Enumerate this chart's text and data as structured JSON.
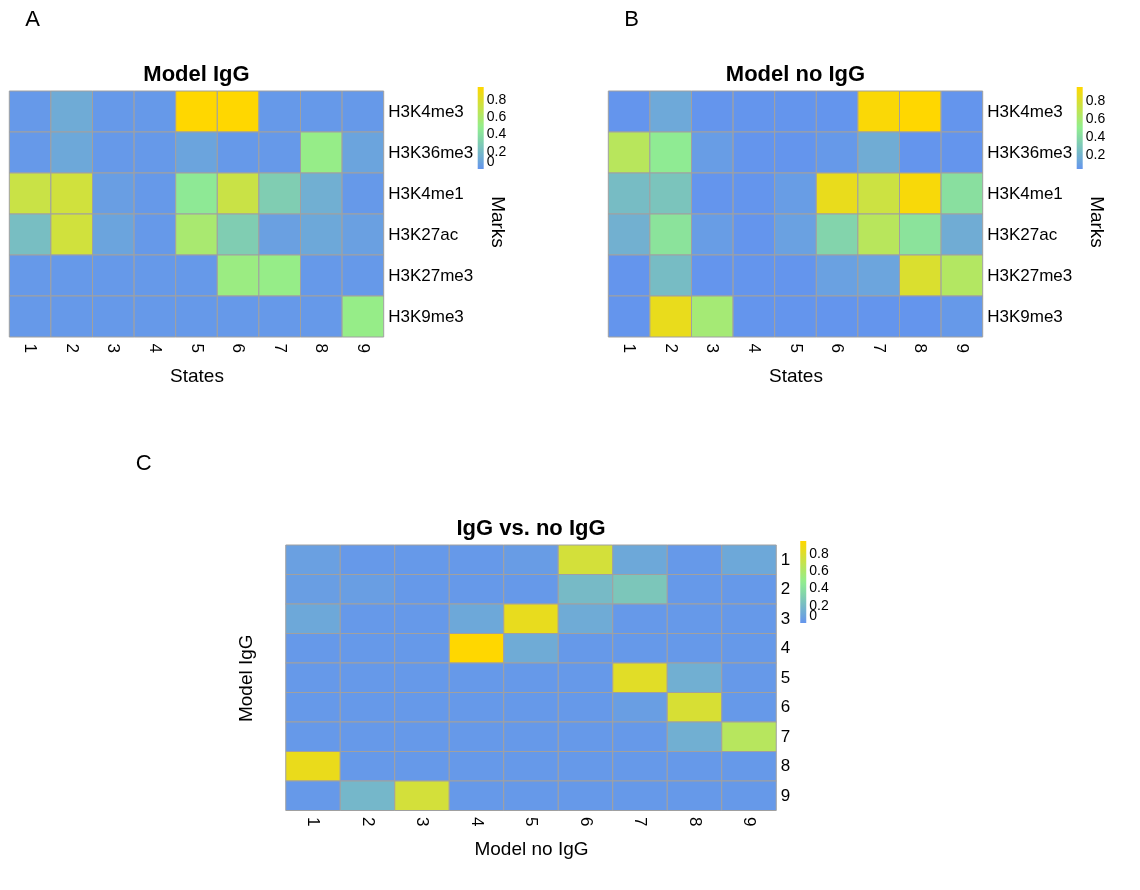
{
  "chart_data": [
    {
      "type": "heatmap",
      "title": "Model IgG",
      "xlabel": "States",
      "clabel": "Marks",
      "annotations": [
        "A"
      ],
      "categories": [
        "1",
        "2",
        "3",
        "4",
        "5",
        "6",
        "7",
        "8",
        "9"
      ],
      "y_categories": [
        "H3K4me3",
        "H3K36me3",
        "H3K4me1",
        "H3K27ac",
        "H3K27me3",
        "H3K9me3"
      ],
      "cells": [
        [
          0.02,
          0.12,
          0.02,
          0.02,
          0.95,
          0.95,
          0.02,
          0.02,
          0.02
        ],
        [
          0.02,
          0.1,
          0.02,
          0.02,
          0.08,
          0.02,
          0.02,
          0.5,
          0.08
        ],
        [
          0.72,
          0.75,
          0.05,
          0.02,
          0.45,
          0.72,
          0.3,
          0.14,
          0.02
        ],
        [
          0.22,
          0.75,
          0.08,
          0.02,
          0.58,
          0.3,
          0.06,
          0.1,
          0.06
        ],
        [
          0.02,
          0.02,
          0.02,
          0.02,
          0.02,
          0.52,
          0.5,
          0.02,
          0.02
        ],
        [
          0.02,
          0.02,
          0.02,
          0.02,
          0.02,
          0.02,
          0.02,
          0.02,
          0.5
        ]
      ],
      "clim": [
        0,
        0.95
      ],
      "cticks": [
        0,
        0.2,
        0.4,
        0.6,
        0.8
      ]
    },
    {
      "type": "heatmap",
      "title": "Model no IgG",
      "xlabel": "States",
      "clabel": "Marks",
      "annotations": [
        "B"
      ],
      "categories": [
        "1",
        "2",
        "3",
        "4",
        "5",
        "6",
        "7",
        "8",
        "9"
      ],
      "y_categories": [
        "H3K4me3",
        "H3K36me3",
        "H3K4me1",
        "H3K27ac",
        "H3K27me3",
        "H3K9me3"
      ],
      "cells": [
        [
          0.04,
          0.14,
          0.04,
          0.04,
          0.04,
          0.04,
          0.93,
          0.95,
          0.04
        ],
        [
          0.66,
          0.48,
          0.08,
          0.04,
          0.04,
          0.06,
          0.16,
          0.04,
          0.04
        ],
        [
          0.24,
          0.28,
          0.04,
          0.04,
          0.08,
          0.86,
          0.74,
          0.92,
          0.42
        ],
        [
          0.18,
          0.44,
          0.08,
          0.04,
          0.1,
          0.36,
          0.66,
          0.44,
          0.16
        ],
        [
          0.04,
          0.24,
          0.04,
          0.04,
          0.04,
          0.1,
          0.12,
          0.8,
          0.64
        ],
        [
          0.04,
          0.86,
          0.58,
          0.04,
          0.04,
          0.04,
          0.04,
          0.04,
          0.06
        ]
      ],
      "clim": [
        0.04,
        0.95
      ],
      "cticks": [
        0.2,
        0.4,
        0.6,
        0.8
      ]
    },
    {
      "type": "heatmap",
      "title": "IgG vs. no IgG",
      "xlabel": "Model no IgG",
      "ylabel": "Model IgG",
      "annotations": [
        "C"
      ],
      "categories": [
        "1",
        "2",
        "3",
        "4",
        "5",
        "6",
        "7",
        "8",
        "9"
      ],
      "y_categories": [
        "1",
        "2",
        "3",
        "4",
        "5",
        "6",
        "7",
        "8",
        "9"
      ],
      "cells": [
        [
          0.06,
          0.02,
          0.02,
          0.02,
          0.04,
          0.76,
          0.1,
          0.02,
          0.1
        ],
        [
          0.05,
          0.05,
          0.02,
          0.02,
          0.02,
          0.2,
          0.26,
          0.02,
          0.02
        ],
        [
          0.1,
          0.02,
          0.02,
          0.1,
          0.85,
          0.12,
          0.02,
          0.02,
          0.02
        ],
        [
          0.02,
          0.02,
          0.02,
          0.95,
          0.12,
          0.02,
          0.02,
          0.02,
          0.02
        ],
        [
          0.02,
          0.02,
          0.02,
          0.02,
          0.02,
          0.02,
          0.82,
          0.14,
          0.02
        ],
        [
          0.02,
          0.02,
          0.02,
          0.02,
          0.02,
          0.02,
          0.05,
          0.78,
          0.02
        ],
        [
          0.02,
          0.02,
          0.02,
          0.02,
          0.02,
          0.02,
          0.02,
          0.14,
          0.64
        ],
        [
          0.86,
          0.02,
          0.02,
          0.02,
          0.02,
          0.02,
          0.02,
          0.02,
          0.02
        ],
        [
          0.02,
          0.18,
          0.76,
          0.02,
          0.02,
          0.02,
          0.02,
          0.02,
          0.02
        ]
      ],
      "clim": [
        0,
        0.95
      ],
      "cticks": [
        0,
        0.2,
        0.4,
        0.6,
        0.8
      ]
    }
  ]
}
